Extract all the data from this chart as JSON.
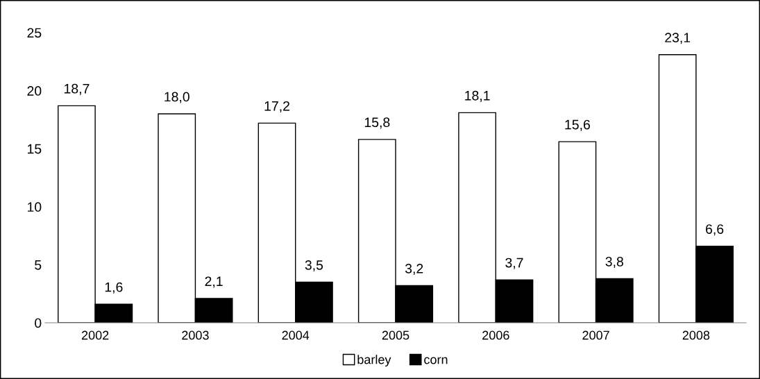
{
  "chart_data": {
    "type": "bar",
    "categories": [
      "2002",
      "2003",
      "2004",
      "2005",
      "2006",
      "2007",
      "2008"
    ],
    "series": [
      {
        "name": "barley",
        "color": "#ffffff",
        "values": [
          18.7,
          18.0,
          17.2,
          15.8,
          18.1,
          15.6,
          23.1
        ],
        "value_labels": [
          "18,7",
          "18,0",
          "17,2",
          "15,8",
          "18,1",
          "15,6",
          "23,1"
        ]
      },
      {
        "name": "corn",
        "color": "#000000",
        "values": [
          1.6,
          2.1,
          3.5,
          3.2,
          3.7,
          3.8,
          6.6
        ],
        "value_labels": [
          "1,6",
          "2,1",
          "3,5",
          "3,2",
          "3,7",
          "3,8",
          "6,6"
        ]
      }
    ],
    "ylim": [
      0,
      25
    ],
    "yticks": [
      0,
      5,
      10,
      15,
      20,
      25
    ],
    "grid": false,
    "legend": "bottom"
  }
}
